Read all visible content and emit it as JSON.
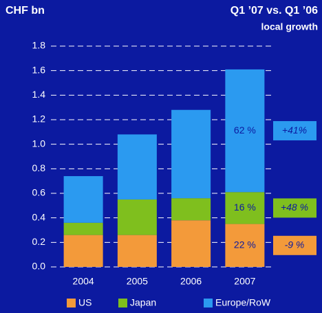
{
  "chart_data": {
    "type": "stacked_bar",
    "title": "CHF bn",
    "subtitle": "Q1 ’07 vs. Q1 ’06",
    "note": "local growth",
    "categories": [
      "2004",
      "2005",
      "2006",
      "2007"
    ],
    "series": [
      {
        "name": "US",
        "color": "#f39a3a",
        "values": [
          0.26,
          0.26,
          0.38,
          0.35
        ]
      },
      {
        "name": "Japan",
        "color": "#7fbf1e",
        "values": [
          0.1,
          0.29,
          0.18,
          0.26
        ]
      },
      {
        "name": "Europe/RoW",
        "color": "#2b9af0",
        "values": [
          0.38,
          0.53,
          0.72,
          1.0
        ]
      }
    ],
    "share_labels": [
      "22 %",
      "16 %",
      "62 %"
    ],
    "growth_labels": [
      "-9 %",
      "+48 %",
      "+41%"
    ],
    "ylim": [
      0,
      1.8
    ],
    "yticks": [
      {
        "value": 0,
        "label": "0.0"
      },
      0.2,
      0.4,
      0.6,
      0.8,
      {
        "value": 1,
        "label": "1.0"
      },
      1.2,
      1.4,
      1.6,
      1.8
    ],
    "grid": true
  }
}
